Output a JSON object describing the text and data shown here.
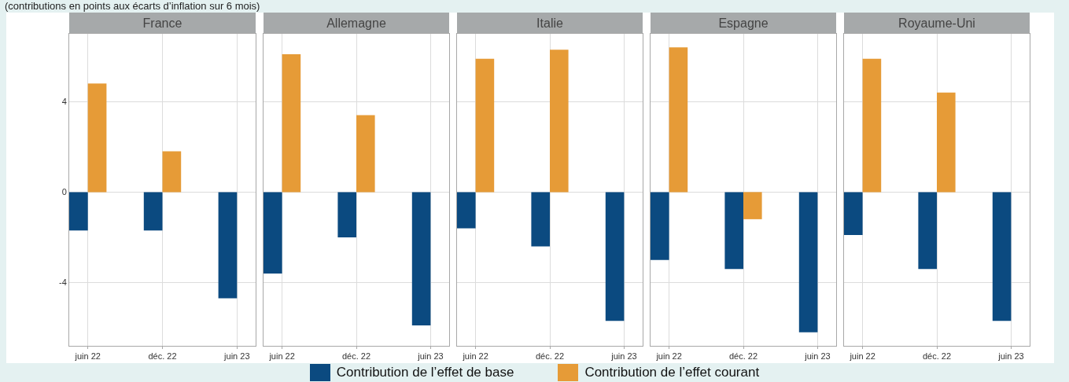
{
  "chart_data": [
    {
      "type": "bar",
      "title": "France",
      "subtitle": "(contributions en points aux écarts d’inflation sur 6 mois)",
      "categories": [
        "juin 22",
        "déc. 22",
        "juin 23"
      ],
      "ylim": [
        -6.8,
        7.0
      ],
      "yticks": [
        -4,
        0,
        4
      ],
      "grid": true,
      "legend": "bottom",
      "series": [
        {
          "name": "Contribution de l’effet de base",
          "color": "#0b4a80",
          "values": [
            -1.7,
            -1.7,
            -4.7
          ]
        },
        {
          "name": "Contribution de l’effet courant",
          "color": "#e69b37",
          "values": [
            4.8,
            1.8,
            0
          ]
        }
      ]
    },
    {
      "type": "bar",
      "title": "Allemagne",
      "categories": [
        "juin 22",
        "déc. 22",
        "juin 23"
      ],
      "ylim": [
        -6.8,
        7.0
      ],
      "yticks": [
        -4,
        0,
        4
      ],
      "grid": true,
      "tick_labels": "x",
      "series": [
        {
          "color": "#0b4a80",
          "values": [
            -3.6,
            -2.0,
            -5.9
          ]
        },
        {
          "color": "#e69b37",
          "values": [
            6.1,
            3.4,
            0
          ]
        }
      ]
    },
    {
      "type": "bar",
      "title": "Italie",
      "categories": [
        "juin 22",
        "déc. 22",
        "juin 23"
      ],
      "ylim": [
        -6.8,
        7.0
      ],
      "yticks": [
        -4,
        0,
        4
      ],
      "grid": true,
      "tick_labels": "x",
      "series": [
        {
          "color": "#0b4a80",
          "values": [
            -1.6,
            -2.4,
            -5.7
          ]
        },
        {
          "color": "#e69b37",
          "values": [
            5.9,
            6.3,
            0
          ]
        }
      ]
    },
    {
      "type": "bar",
      "title": "Espagne",
      "categories": [
        "juin 22",
        "déc. 22",
        "juin 23"
      ],
      "ylim": [
        -6.8,
        7.0
      ],
      "yticks": [
        -4,
        0,
        4
      ],
      "grid": true,
      "tick_labels": "x",
      "series": [
        {
          "color": "#0b4a80",
          "values": [
            -3.0,
            -3.4,
            -6.2
          ]
        },
        {
          "color": "#e69b37",
          "values": [
            6.4,
            -1.2,
            0
          ]
        }
      ]
    },
    {
      "type": "bar",
      "title": "Royaume-Uni",
      "categories": [
        "juin 22",
        "déc. 22",
        "juin 23"
      ],
      "ylim": [
        -6.8,
        7.0
      ],
      "yticks": [
        -4,
        0,
        4
      ],
      "grid": true,
      "tick_labels": "x",
      "series": [
        {
          "color": "#0b4a80",
          "values": [
            -1.9,
            -3.4,
            -5.7
          ]
        },
        {
          "color": "#e69b37",
          "values": [
            5.9,
            4.4,
            0
          ]
        }
      ]
    }
  ]
}
